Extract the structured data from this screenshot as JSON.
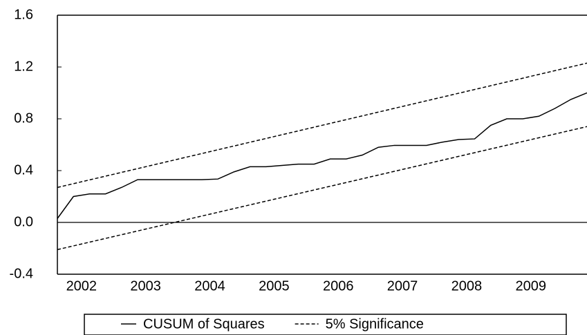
{
  "chart_data": {
    "type": "line",
    "x": [
      2002.125,
      2002.375,
      2002.625,
      2002.875,
      2003.125,
      2003.375,
      2003.625,
      2003.875,
      2004.125,
      2004.375,
      2004.625,
      2004.875,
      2005.125,
      2005.375,
      2005.625,
      2005.875,
      2006.125,
      2006.375,
      2006.625,
      2006.875,
      2007.125,
      2007.375,
      2007.625,
      2007.875,
      2008.125,
      2008.375,
      2008.625,
      2008.875,
      2009.125,
      2009.375,
      2009.625,
      2009.875,
      2010.125,
      2010.375
    ],
    "series": [
      {
        "name": "CUSUM of Squares",
        "color": "#000000",
        "dash": false,
        "values": [
          0.03,
          0.2,
          0.22,
          0.22,
          0.27,
          0.33,
          0.33,
          0.33,
          0.33,
          0.33,
          0.335,
          0.39,
          0.43,
          0.43,
          0.44,
          0.45,
          0.45,
          0.49,
          0.49,
          0.52,
          0.58,
          0.595,
          0.595,
          0.595,
          0.62,
          0.64,
          0.645,
          0.75,
          0.8,
          0.8,
          0.82,
          0.88,
          0.95,
          1.0
        ]
      },
      {
        "name": "5% Significance",
        "color": "#000000",
        "dash": true,
        "x": [
          2002.125,
          2010.375
        ],
        "values": [
          0.27,
          1.23
        ]
      },
      {
        "color": "#000000",
        "dash": true,
        "x": [
          2002.125,
          2010.375
        ],
        "values": [
          -0.21,
          0.74
        ]
      }
    ],
    "xlim": [
      2002.125,
      2010.375
    ],
    "xticks": [
      {
        "value": 2002.5,
        "label": "2002"
      },
      {
        "value": 2003.5,
        "label": "2003"
      },
      {
        "value": 2004.5,
        "label": "2004"
      },
      {
        "value": 2005.5,
        "label": "2005"
      },
      {
        "value": 2006.5,
        "label": "2006"
      },
      {
        "value": 2007.5,
        "label": "2007"
      },
      {
        "value": 2008.5,
        "label": "2008"
      },
      {
        "value": 2009.5,
        "label": "2009"
      }
    ],
    "ylim": [
      -0.4,
      1.6
    ],
    "yticks": [
      -0.4,
      {
        "value": 0,
        "label": "0.0"
      },
      0.4,
      0.8,
      1.2,
      1.6
    ],
    "hline": 0,
    "legend": "bottom"
  }
}
